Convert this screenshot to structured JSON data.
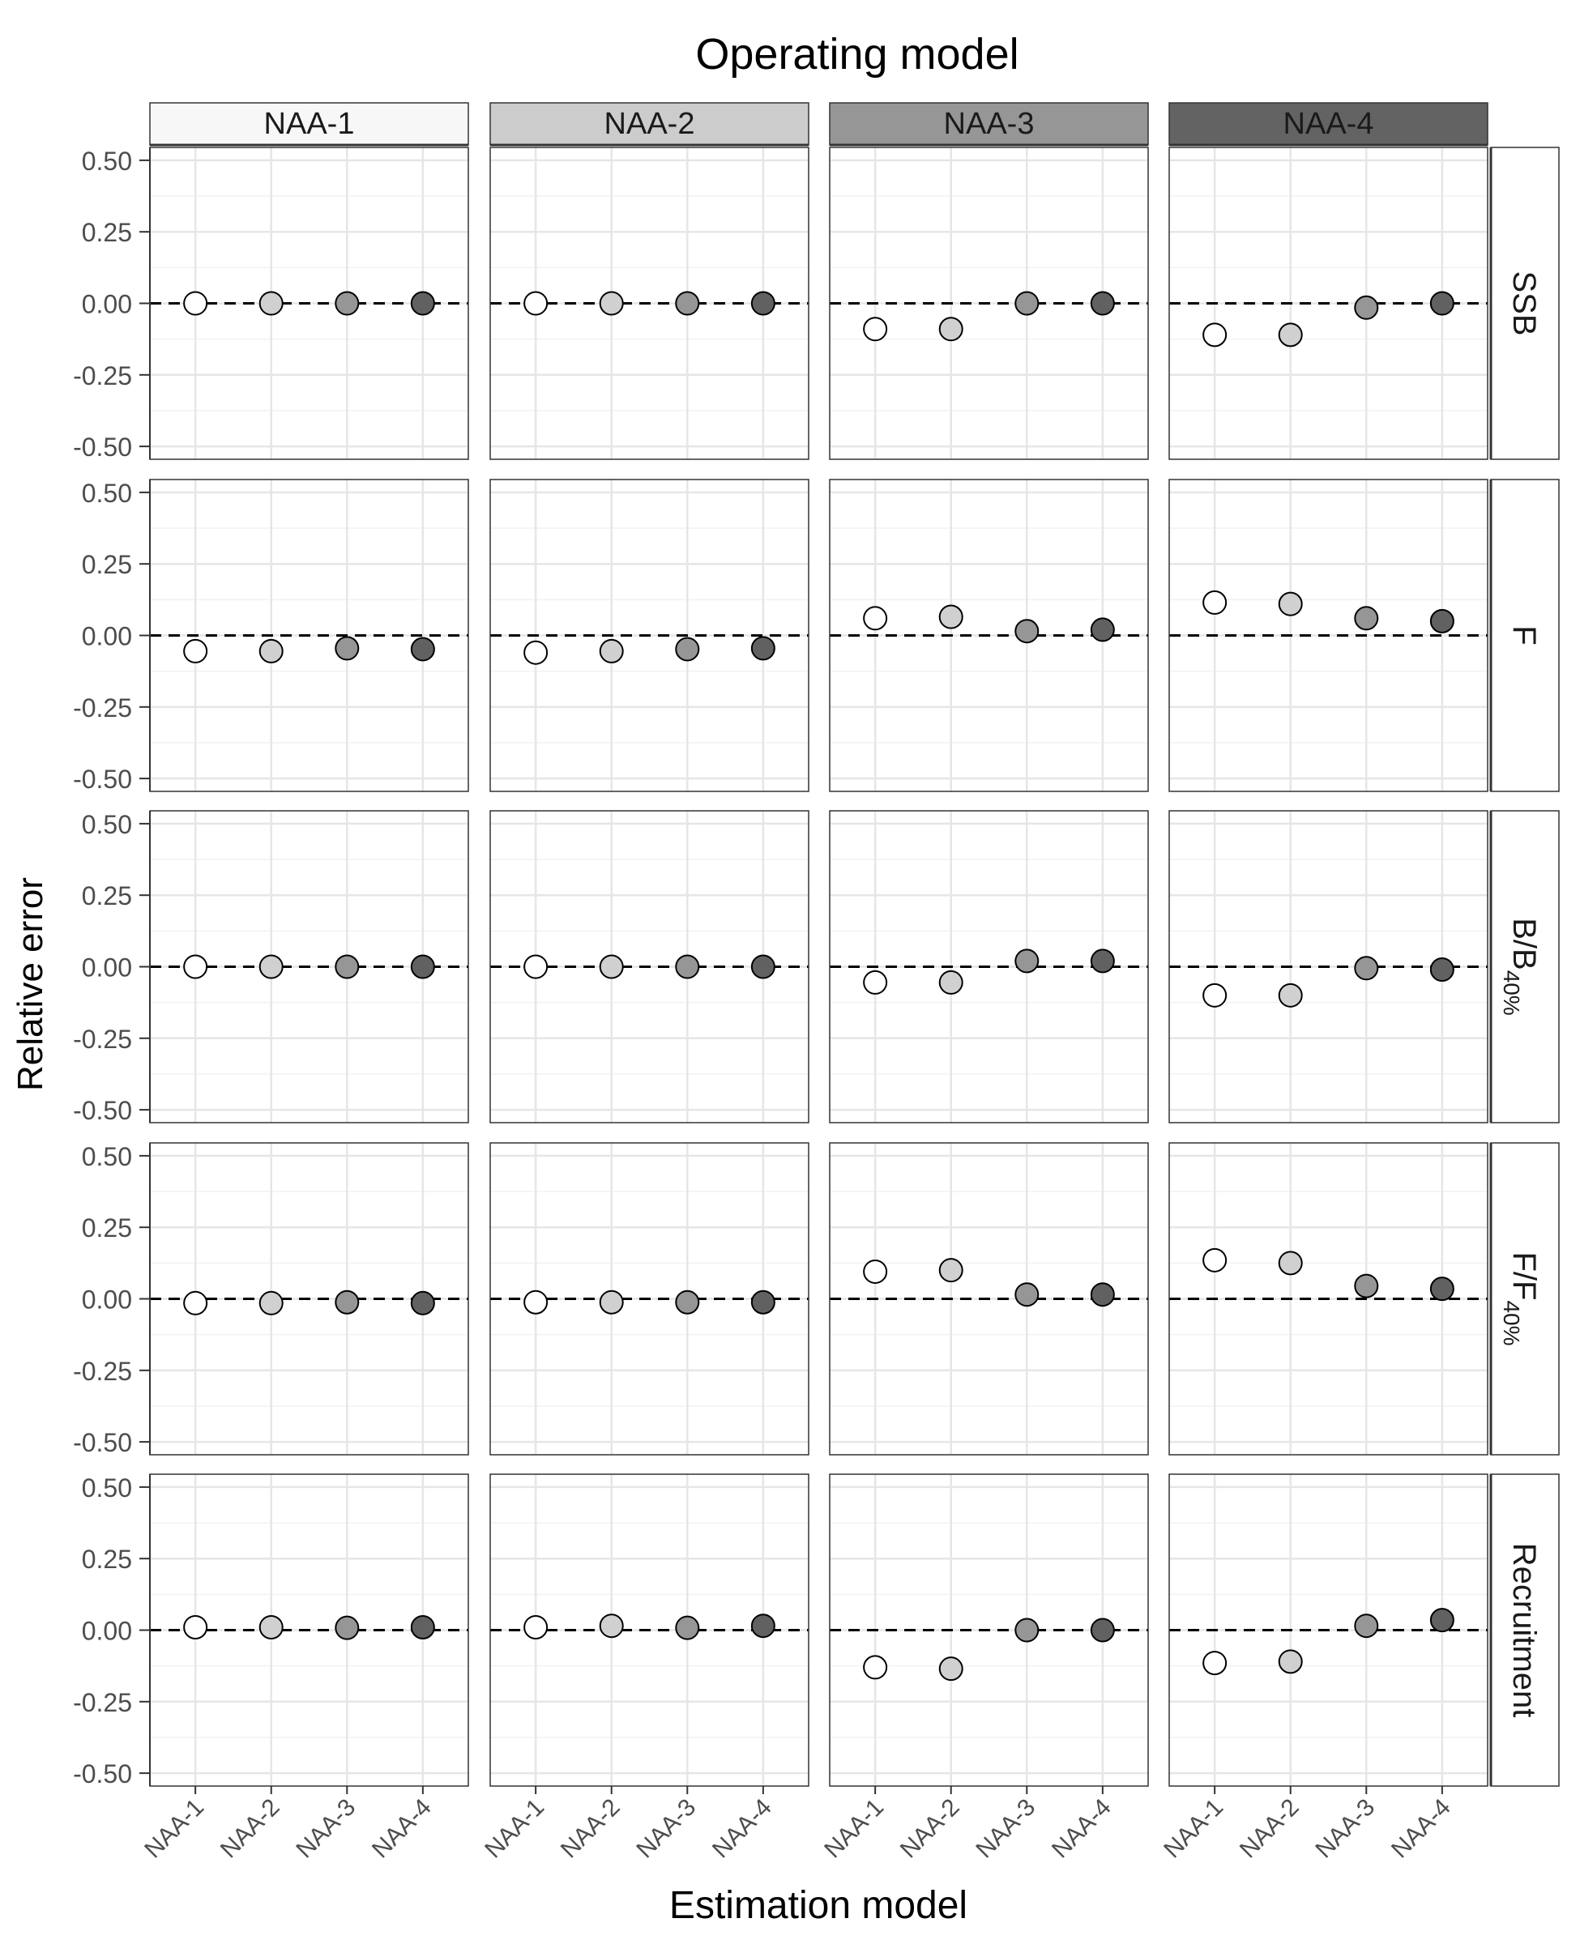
{
  "chart_data": {
    "type": "scatter",
    "title": "Operating model",
    "xlabel": "Estimation model",
    "ylabel": "Relative error",
    "ylim": [
      -0.5,
      0.5
    ],
    "yticks": [
      "0.50",
      "0.25",
      "0.00",
      "-0.25",
      "-0.50"
    ],
    "categories": [
      "NAA-1",
      "NAA-2",
      "NAA-3",
      "NAA-4"
    ],
    "column_facets": [
      "NAA-1",
      "NAA-2",
      "NAA-3",
      "NAA-4"
    ],
    "column_strip_colors": [
      "#f7f7f7",
      "#cccccc",
      "#969696",
      "#636363"
    ],
    "row_facets": [
      {
        "label": "SSB"
      },
      {
        "label": "F"
      },
      {
        "label": "B/B",
        "sub": "40%"
      },
      {
        "label": "F/F",
        "sub": "40%"
      },
      {
        "label": "Recruitment"
      }
    ],
    "point_colors": [
      "#ffffff",
      "#d0d0d0",
      "#969696",
      "#616161"
    ],
    "reference_line": 0,
    "grid": true,
    "values": [
      [
        [
          0.0,
          0.0,
          0.0,
          0.0
        ],
        [
          0.0,
          0.0,
          0.0,
          0.0
        ],
        [
          -0.09,
          -0.09,
          0.0,
          0.0
        ],
        [
          -0.11,
          -0.11,
          -0.015,
          0.0
        ]
      ],
      [
        [
          -0.055,
          -0.055,
          -0.045,
          -0.048
        ],
        [
          -0.06,
          -0.055,
          -0.048,
          -0.045
        ],
        [
          0.06,
          0.065,
          0.015,
          0.02
        ],
        [
          0.115,
          0.11,
          0.06,
          0.05
        ]
      ],
      [
        [
          0.0,
          0.0,
          0.0,
          0.0
        ],
        [
          0.0,
          0.0,
          0.0,
          0.0
        ],
        [
          -0.055,
          -0.055,
          0.02,
          0.02
        ],
        [
          -0.1,
          -0.1,
          -0.005,
          -0.01
        ]
      ],
      [
        [
          -0.015,
          -0.015,
          -0.012,
          -0.015
        ],
        [
          -0.012,
          -0.012,
          -0.012,
          -0.012
        ],
        [
          0.095,
          0.1,
          0.015,
          0.015
        ],
        [
          0.135,
          0.125,
          0.045,
          0.035
        ]
      ],
      [
        [
          0.01,
          0.01,
          0.008,
          0.01
        ],
        [
          0.01,
          0.015,
          0.008,
          0.015
        ],
        [
          -0.13,
          -0.135,
          0.0,
          0.0
        ],
        [
          -0.115,
          -0.11,
          0.015,
          0.035
        ]
      ]
    ]
  }
}
